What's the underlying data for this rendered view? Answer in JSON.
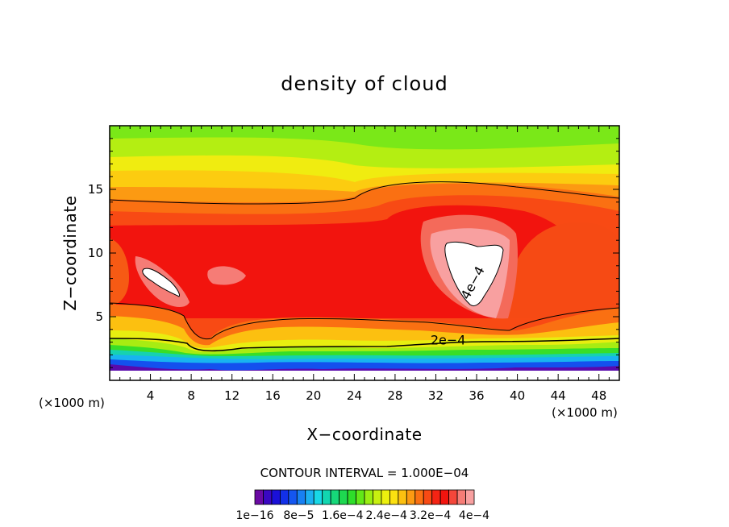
{
  "chart_data": {
    "type": "heatmap",
    "title": "density of cloud",
    "xlabel": "X−coordinate",
    "ylabel": "Z−coordinate",
    "x_unit_left": "(×1000 m)",
    "x_unit_right": "(×1000 m)",
    "xlim": [
      0,
      50
    ],
    "ylim": [
      0,
      20
    ],
    "x_ticks": [
      4,
      8,
      12,
      16,
      20,
      24,
      28,
      32,
      36,
      40,
      44,
      48
    ],
    "y_ticks": [
      5,
      10,
      15
    ],
    "contour_interval_label": "CONTOUR INTERVAL = 1.000E−04",
    "contour_labels": [
      {
        "text": "2e−4",
        "x": 33.2,
        "y": 3.2
      },
      {
        "text": "4e−4",
        "x": 36.0,
        "y": 7.5
      }
    ],
    "colorbar": {
      "colors": [
        "#6a0aa3",
        "#3a08c2",
        "#1a10d8",
        "#1230e8",
        "#1456f0",
        "#1880f2",
        "#1cb0f0",
        "#18d8e6",
        "#12d6b0",
        "#16d87a",
        "#1ed850",
        "#2ede2a",
        "#62e818",
        "#9aee12",
        "#c8f010",
        "#ecf00e",
        "#fce010",
        "#fcc010",
        "#fc9a12",
        "#fa7012",
        "#f84a14",
        "#f42414",
        "#f2140e",
        "#f4463a",
        "#f67c76",
        "#f8a0a0"
      ],
      "tick_labels": [
        "1e−16",
        "8e−5",
        "1.6e−4",
        "2.4e−4",
        "3.2e−4",
        "4e−4"
      ]
    }
  }
}
